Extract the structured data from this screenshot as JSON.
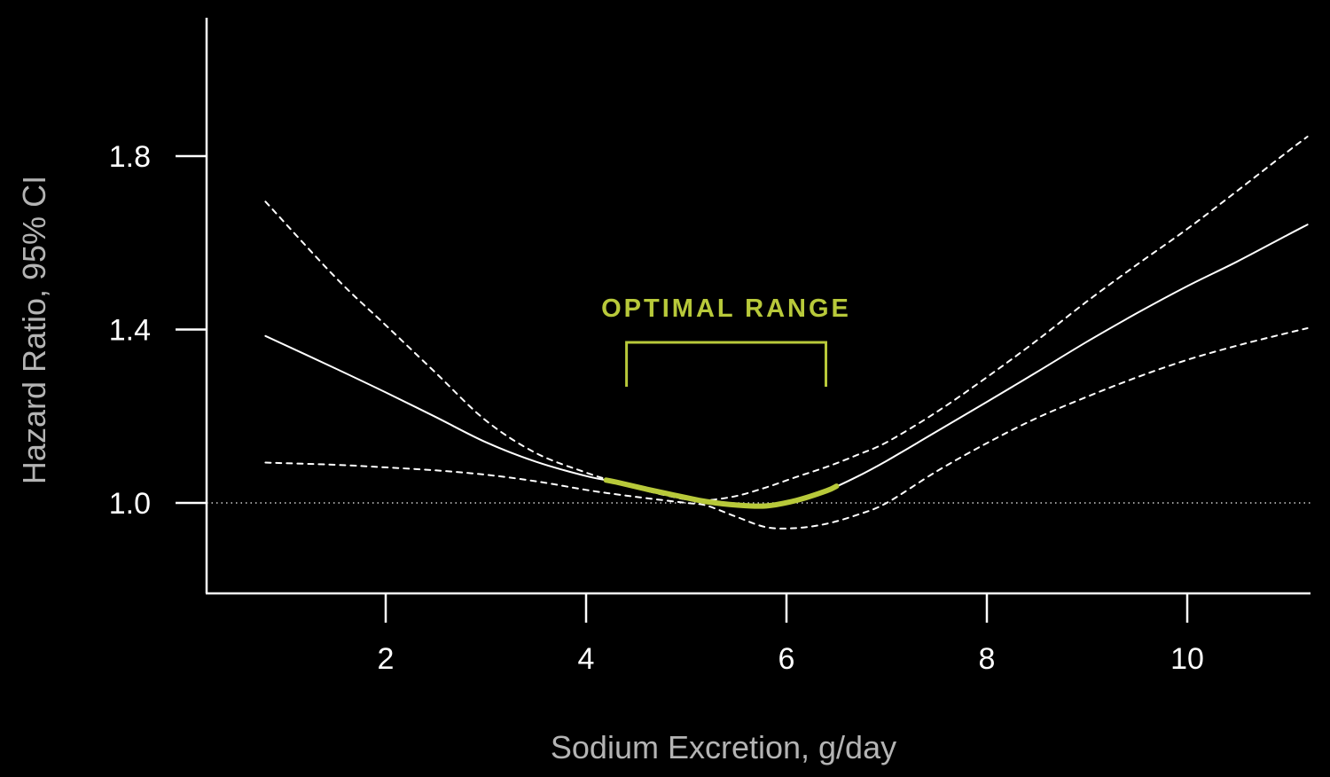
{
  "chart_data": {
    "type": "line",
    "xlabel": "Sodium Excretion, g/day",
    "ylabel": "Hazard Ratio, 95% CI",
    "xlim": [
      0.1,
      11.3
    ],
    "ylim": [
      0.79,
      2.11
    ],
    "x_ticks": [
      2,
      4,
      6,
      8,
      10
    ],
    "x_tick_labels": [
      "2",
      "4",
      "6",
      "8",
      "10"
    ],
    "y_ticks": [
      1.0,
      1.4,
      1.8
    ],
    "y_tick_labels": [
      "1.0",
      "1.4",
      "1.8"
    ],
    "reference_line": 1.0,
    "grid": false,
    "series": [
      {
        "style": "solid",
        "x": [
          0.8,
          1.5,
          2.0,
          2.5,
          3.0,
          3.5,
          4.0,
          4.3,
          4.6,
          5.0,
          5.2,
          5.5,
          5.8,
          6.1,
          6.4,
          6.7,
          7.0,
          7.5,
          8.0,
          8.5,
          9.0,
          9.5,
          10.0,
          10.5,
          11.0,
          11.2
        ],
        "y": [
          1.385,
          1.31,
          1.255,
          1.198,
          1.14,
          1.095,
          1.062,
          1.048,
          1.032,
          1.012,
          1.003,
          0.995,
          0.993,
          1.006,
          1.028,
          1.06,
          1.097,
          1.165,
          1.233,
          1.302,
          1.372,
          1.438,
          1.5,
          1.557,
          1.618,
          1.642
        ]
      },
      {
        "style": "dashed",
        "x": [
          0.8,
          1.5,
          2.0,
          2.5,
          3.0,
          3.5,
          4.0,
          4.3,
          4.6,
          5.0,
          5.2,
          5.5,
          5.8,
          6.1,
          6.4,
          6.7,
          7.0,
          7.5,
          8.0,
          8.5,
          9.0,
          9.5,
          10.0,
          10.5,
          11.0,
          11.2
        ],
        "y": [
          1.695,
          1.52,
          1.41,
          1.3,
          1.19,
          1.115,
          1.07,
          1.048,
          1.028,
          1.008,
          1.006,
          1.016,
          1.036,
          1.06,
          1.083,
          1.11,
          1.14,
          1.21,
          1.29,
          1.375,
          1.465,
          1.55,
          1.632,
          1.72,
          1.81,
          1.845
        ]
      },
      {
        "style": "dashed",
        "x": [
          0.8,
          1.5,
          2.0,
          2.5,
          3.0,
          3.5,
          4.0,
          4.3,
          4.6,
          5.0,
          5.2,
          5.5,
          5.8,
          6.1,
          6.4,
          6.7,
          7.0,
          7.5,
          8.0,
          8.5,
          9.0,
          9.5,
          10.0,
          10.5,
          11.0,
          11.2
        ],
        "y": [
          1.093,
          1.088,
          1.082,
          1.075,
          1.065,
          1.05,
          1.03,
          1.02,
          1.011,
          1.0,
          0.994,
          0.968,
          0.944,
          0.942,
          0.952,
          0.972,
          1.0,
          1.073,
          1.138,
          1.196,
          1.245,
          1.29,
          1.33,
          1.363,
          1.392,
          1.403
        ]
      }
    ],
    "highlight": {
      "label": "OPTIMAL RANGE",
      "color": "#b8c93a",
      "x_range": [
        4.2,
        6.5
      ]
    },
    "colors": {
      "background": "#000000",
      "axis": "#ffffff",
      "estimate": "#ffffff",
      "ci": "#ffffff",
      "reference": "#cfcfcf",
      "accent": "#b8c93a"
    }
  }
}
